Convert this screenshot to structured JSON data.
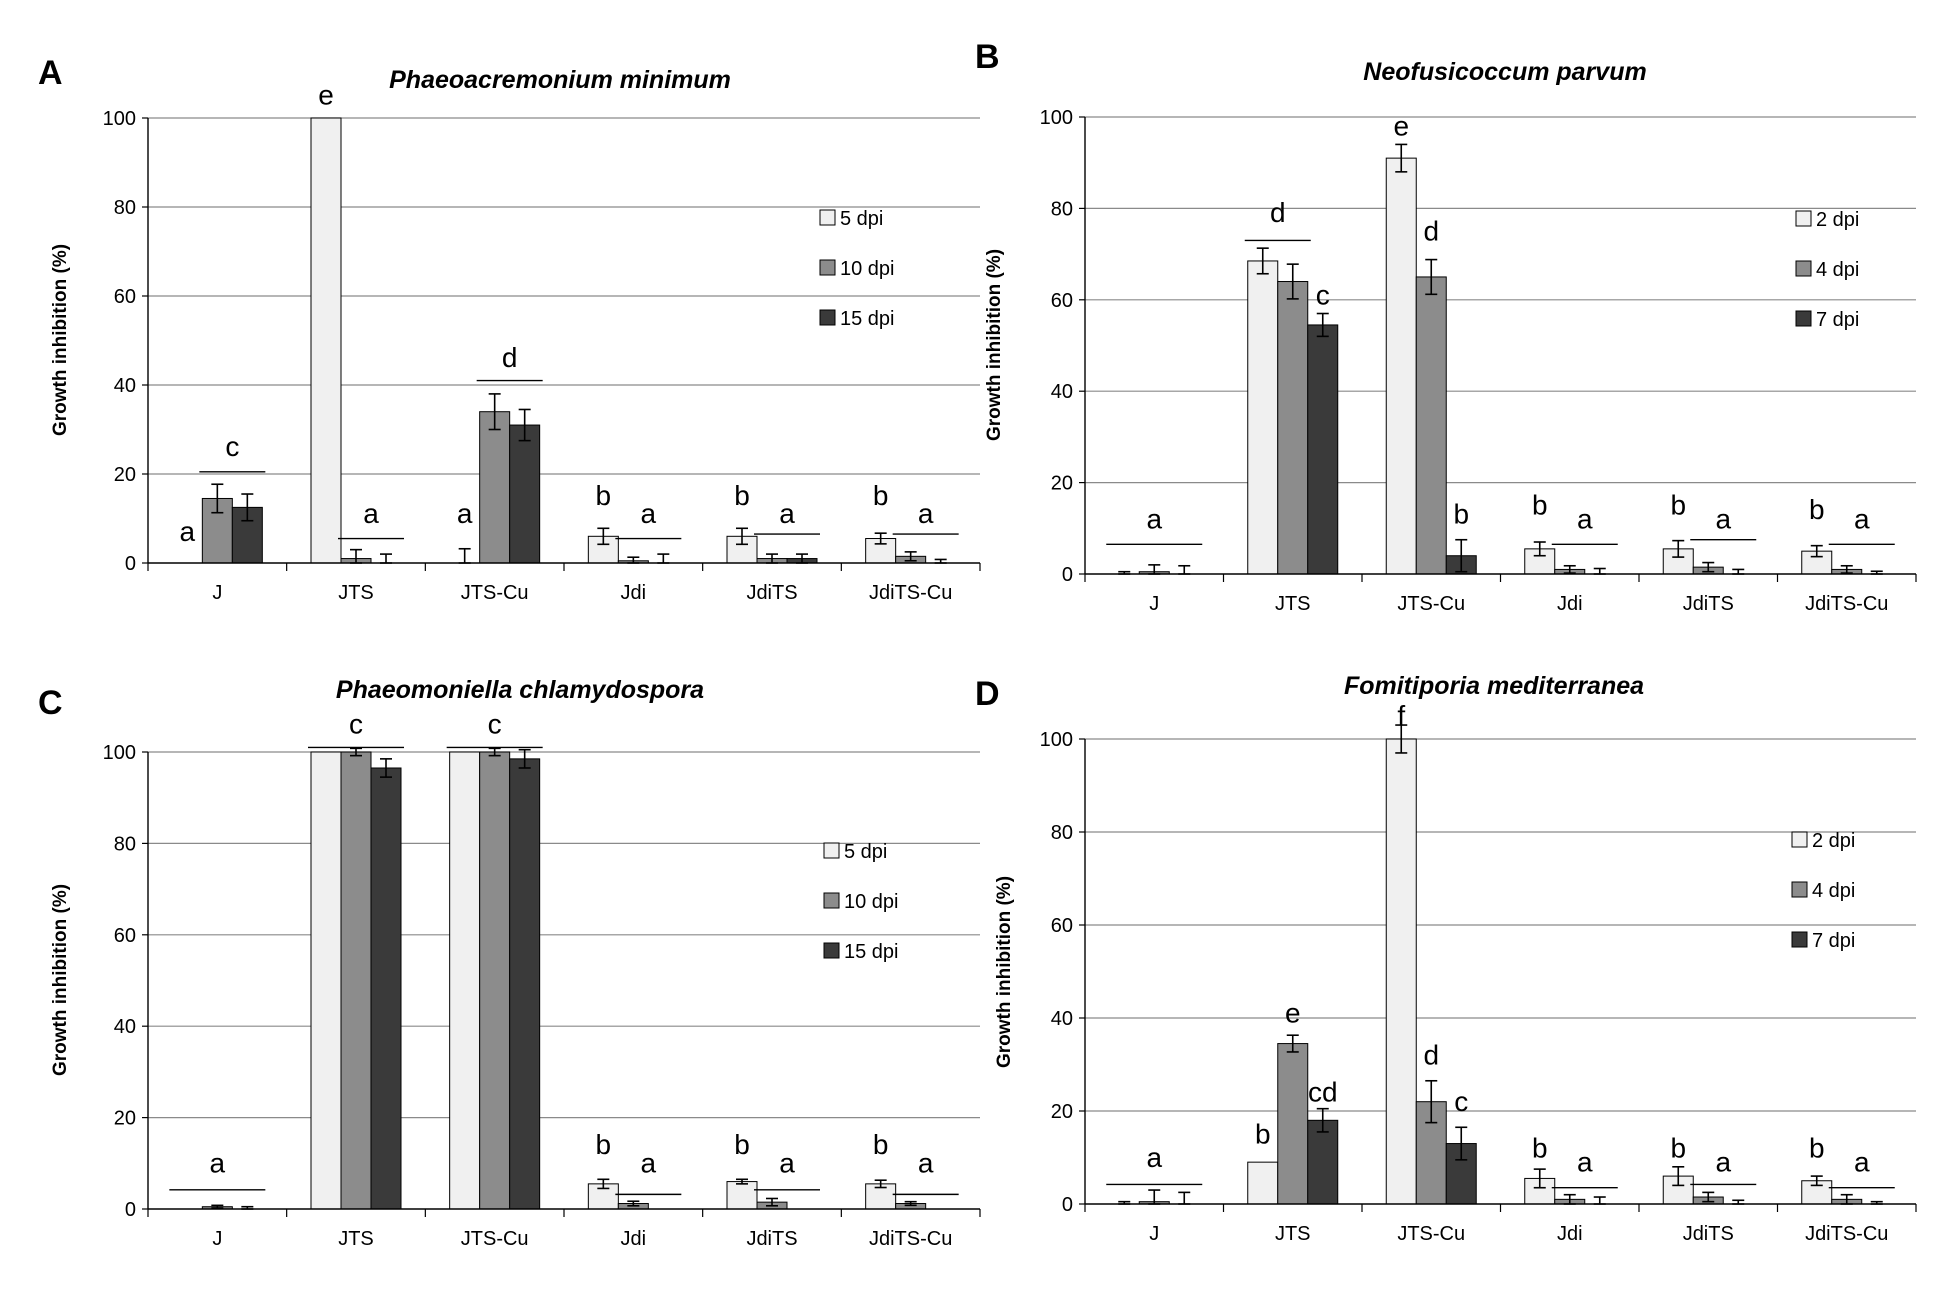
{
  "chart_data": [
    {
      "panel": "A",
      "type": "bar",
      "title": "Phaeoacremonium minimum",
      "ylabel": "Growth inhibition  (%)",
      "xlabel": "",
      "ylim": [
        0,
        100
      ],
      "yticks": [
        0,
        20,
        40,
        60,
        80,
        100
      ],
      "categories": [
        "J",
        "JTS",
        "JTS-Cu",
        "Jdi",
        "JdiTS",
        "JdiTS-Cu"
      ],
      "series": [
        {
          "name": "5  dpi",
          "color": "#f0f0f0",
          "values": [
            0,
            100,
            0,
            6,
            6,
            5.5
          ],
          "errors": [
            0,
            0,
            3.2,
            1.8,
            1.8,
            1.2
          ]
        },
        {
          "name": "10 dpi",
          "color": "#8c8c8c",
          "values": [
            14.5,
            1,
            34,
            0.5,
            1,
            1.5
          ],
          "errors": [
            3.2,
            2,
            4,
            0.8,
            1,
            1
          ]
        },
        {
          "name": "15 dpi",
          "color": "#3a3a3a",
          "values": [
            12.5,
            0,
            31,
            0,
            1,
            0
          ],
          "errors": [
            3,
            2,
            3.5,
            2,
            1,
            0.8
          ]
        }
      ],
      "letters": [
        {
          "text": "a",
          "group": 0,
          "series": 0,
          "y": 5
        },
        {
          "text": "c",
          "group": 0,
          "series": 1.5,
          "y": 24
        },
        {
          "text": "e",
          "group": 1,
          "series": 0,
          "y": 103
        },
        {
          "text": "a",
          "group": 1,
          "series": 1.5,
          "y": 9
        },
        {
          "text": "a",
          "group": 2,
          "series": 0,
          "y": 9
        },
        {
          "text": "d",
          "group": 2,
          "series": 1.5,
          "y": 44
        },
        {
          "text": "b",
          "group": 3,
          "series": 0,
          "y": 13
        },
        {
          "text": "a",
          "group": 3,
          "series": 1.5,
          "y": 9
        },
        {
          "text": "b",
          "group": 4,
          "series": 0,
          "y": 13
        },
        {
          "text": "a",
          "group": 4,
          "series": 1.5,
          "y": 9
        },
        {
          "text": "b",
          "group": 5,
          "series": 0,
          "y": 13
        },
        {
          "text": "a",
          "group": 5,
          "series": 1.5,
          "y": 9
        }
      ],
      "lines": [
        {
          "group": 0,
          "from": 1,
          "to": 2,
          "y": 20.5
        },
        {
          "group": 1,
          "from": 1,
          "to": 2,
          "y": 5.5
        },
        {
          "group": 2,
          "from": 1,
          "to": 2,
          "y": 41
        },
        {
          "group": 3,
          "from": 1,
          "to": 2,
          "y": 5.5
        },
        {
          "group": 4,
          "from": 1,
          "to": 2,
          "y": 6.5
        },
        {
          "group": 5,
          "from": 1,
          "to": 2,
          "y": 6.5
        }
      ]
    },
    {
      "panel": "B",
      "type": "bar",
      "title": "Neofusicoccum parvum",
      "ylabel": "Growth inhibition  (%)",
      "xlabel": "",
      "ylim": [
        0,
        100
      ],
      "yticks": [
        0,
        20,
        40,
        60,
        80,
        100
      ],
      "categories": [
        "J",
        "JTS",
        "JTS-Cu",
        "Jdi",
        "JdiTS",
        "JdiTS-Cu"
      ],
      "series": [
        {
          "name": "2 dpi",
          "color": "#f0f0f0",
          "values": [
            0,
            68.5,
            91,
            5.5,
            5.5,
            5
          ],
          "errors": [
            0.5,
            2.8,
            3,
            1.5,
            1.8,
            1.2
          ]
        },
        {
          "name": "4 dpi",
          "color": "#8c8c8c",
          "values": [
            0.5,
            64,
            65,
            1,
            1.5,
            1
          ],
          "errors": [
            1.5,
            3.8,
            3.8,
            0.8,
            1,
            0.8
          ]
        },
        {
          "name": "7 dpi",
          "color": "#3a3a3a",
          "values": [
            0,
            54.5,
            4,
            0,
            0,
            0
          ],
          "errors": [
            1.8,
            2.5,
            3.5,
            1.2,
            1,
            0.6
          ]
        }
      ],
      "letters": [
        {
          "text": "a",
          "group": 0,
          "series": 1,
          "y": 10
        },
        {
          "text": "d",
          "group": 1,
          "series": 0.5,
          "y": 77
        },
        {
          "text": "c",
          "group": 1,
          "series": 2,
          "y": 59
        },
        {
          "text": "e",
          "group": 2,
          "series": 0,
          "y": 96
        },
        {
          "text": "d",
          "group": 2,
          "series": 1,
          "y": 73
        },
        {
          "text": "b",
          "group": 2,
          "series": 2,
          "y": 11
        },
        {
          "text": "b",
          "group": 3,
          "series": 0,
          "y": 13
        },
        {
          "text": "a",
          "group": 3,
          "series": 1.5,
          "y": 10
        },
        {
          "text": "b",
          "group": 4,
          "series": 0,
          "y": 13
        },
        {
          "text": "a",
          "group": 4,
          "series": 1.5,
          "y": 10
        },
        {
          "text": "b",
          "group": 5,
          "series": 0,
          "y": 12
        },
        {
          "text": "a",
          "group": 5,
          "series": 1.5,
          "y": 10
        }
      ],
      "lines": [
        {
          "group": 0,
          "from": 0,
          "to": 2,
          "y": 6.5
        },
        {
          "group": 1,
          "from": 0,
          "to": 1,
          "y": 73
        },
        {
          "group": 3,
          "from": 1,
          "to": 2,
          "y": 6.5
        },
        {
          "group": 4,
          "from": 1,
          "to": 2,
          "y": 7.5
        },
        {
          "group": 5,
          "from": 1,
          "to": 2,
          "y": 6.5
        }
      ]
    },
    {
      "panel": "C",
      "type": "bar",
      "title": "Phaeomoniella chlamydospora",
      "ylabel": "Growth inhibition  (%)",
      "xlabel": "",
      "ylim": [
        0,
        100
      ],
      "yticks": [
        0,
        20,
        40,
        60,
        80,
        100
      ],
      "categories": [
        "J",
        "JTS",
        "JTS-Cu",
        "Jdi",
        "JdiTS",
        "JdiTS-Cu"
      ],
      "series": [
        {
          "name": "5   dpi",
          "color": "#f0f0f0",
          "values": [
            0,
            100,
            100,
            5.5,
            6,
            5.5
          ],
          "errors": [
            0,
            0,
            0,
            1,
            0.5,
            0.8
          ]
        },
        {
          "name": "10 dpi",
          "color": "#8c8c8c",
          "values": [
            0.5,
            100,
            100,
            1.2,
            1.5,
            1.2
          ],
          "errors": [
            0.3,
            0.8,
            0.8,
            0.5,
            0.8,
            0.4
          ]
        },
        {
          "name": "15 dpi",
          "color": "#3a3a3a",
          "values": [
            0,
            96.5,
            98.5,
            0,
            0,
            0
          ],
          "errors": [
            0.5,
            2,
            2,
            0,
            0,
            0
          ]
        }
      ],
      "letters": [
        {
          "text": "a",
          "group": 0,
          "series": 1,
          "y": 8
        },
        {
          "text": "c",
          "group": 1,
          "series": 1,
          "y": 104
        },
        {
          "text": "c",
          "group": 2,
          "series": 1,
          "y": 104
        },
        {
          "text": "b",
          "group": 3,
          "series": 0,
          "y": 12
        },
        {
          "text": "a",
          "group": 3,
          "series": 1.5,
          "y": 8
        },
        {
          "text": "b",
          "group": 4,
          "series": 0,
          "y": 12
        },
        {
          "text": "a",
          "group": 4,
          "series": 1.5,
          "y": 8
        },
        {
          "text": "b",
          "group": 5,
          "series": 0,
          "y": 12
        },
        {
          "text": "a",
          "group": 5,
          "series": 1.5,
          "y": 8
        }
      ],
      "lines": [
        {
          "group": 0,
          "from": 0,
          "to": 2,
          "y": 4.2
        },
        {
          "group": 1,
          "from": 0,
          "to": 2,
          "y": 101
        },
        {
          "group": 2,
          "from": 0,
          "to": 2,
          "y": 101
        },
        {
          "group": 3,
          "from": 1,
          "to": 2,
          "y": 3.2
        },
        {
          "group": 4,
          "from": 1,
          "to": 2,
          "y": 4.2
        },
        {
          "group": 5,
          "from": 1,
          "to": 2,
          "y": 3.2
        }
      ]
    },
    {
      "panel": "D",
      "type": "bar",
      "title": "Fomitiporia mediterranea",
      "ylabel": "Growth inhibition  (%)",
      "xlabel": "",
      "ylim": [
        0,
        100
      ],
      "yticks": [
        0,
        20,
        40,
        60,
        80,
        100
      ],
      "categories": [
        "J",
        "JTS",
        "JTS-Cu",
        "Jdi",
        "JdiTS",
        "JdiTS-Cu"
      ],
      "series": [
        {
          "name": "2 dpi",
          "color": "#f0f0f0",
          "values": [
            0,
            9,
            100,
            5.5,
            6,
            5
          ],
          "errors": [
            0.5,
            0,
            3,
            2,
            2,
            1
          ]
        },
        {
          "name": "4 dpi",
          "color": "#8c8c8c",
          "values": [
            0.5,
            34.5,
            22,
            1,
            1.5,
            1
          ],
          "errors": [
            2.5,
            1.8,
            4.5,
            1,
            1,
            1
          ]
        },
        {
          "name": "7 dpi",
          "color": "#3a3a3a",
          "values": [
            0,
            18,
            13,
            0,
            0,
            0
          ],
          "errors": [
            2.5,
            2.5,
            3.5,
            1.5,
            0.8,
            0.5
          ]
        }
      ],
      "letters": [
        {
          "text": "a",
          "group": 0,
          "series": 1,
          "y": 8
        },
        {
          "text": "b",
          "group": 1,
          "series": 0,
          "y": 13
        },
        {
          "text": "e",
          "group": 1,
          "series": 1,
          "y": 39
        },
        {
          "text": "cd",
          "group": 1,
          "series": 2,
          "y": 22
        },
        {
          "text": "f",
          "group": 2,
          "series": 0,
          "y": 103
        },
        {
          "text": "d",
          "group": 2,
          "series": 1,
          "y": 30
        },
        {
          "text": "c",
          "group": 2,
          "series": 2,
          "y": 20
        },
        {
          "text": "b",
          "group": 3,
          "series": 0,
          "y": 10
        },
        {
          "text": "a",
          "group": 3,
          "series": 1.5,
          "y": 7
        },
        {
          "text": "b",
          "group": 4,
          "series": 0,
          "y": 10
        },
        {
          "text": "a",
          "group": 4,
          "series": 1.5,
          "y": 7
        },
        {
          "text": "b",
          "group": 5,
          "series": 0,
          "y": 10
        },
        {
          "text": "a",
          "group": 5,
          "series": 1.5,
          "y": 7
        }
      ],
      "lines": [
        {
          "group": 0,
          "from": 0,
          "to": 2,
          "y": 4.2
        },
        {
          "group": 3,
          "from": 1,
          "to": 2,
          "y": 3.5
        },
        {
          "group": 4,
          "from": 1,
          "to": 2,
          "y": 4.2
        },
        {
          "group": 5,
          "from": 1,
          "to": 2,
          "y": 3.5
        }
      ]
    }
  ]
}
